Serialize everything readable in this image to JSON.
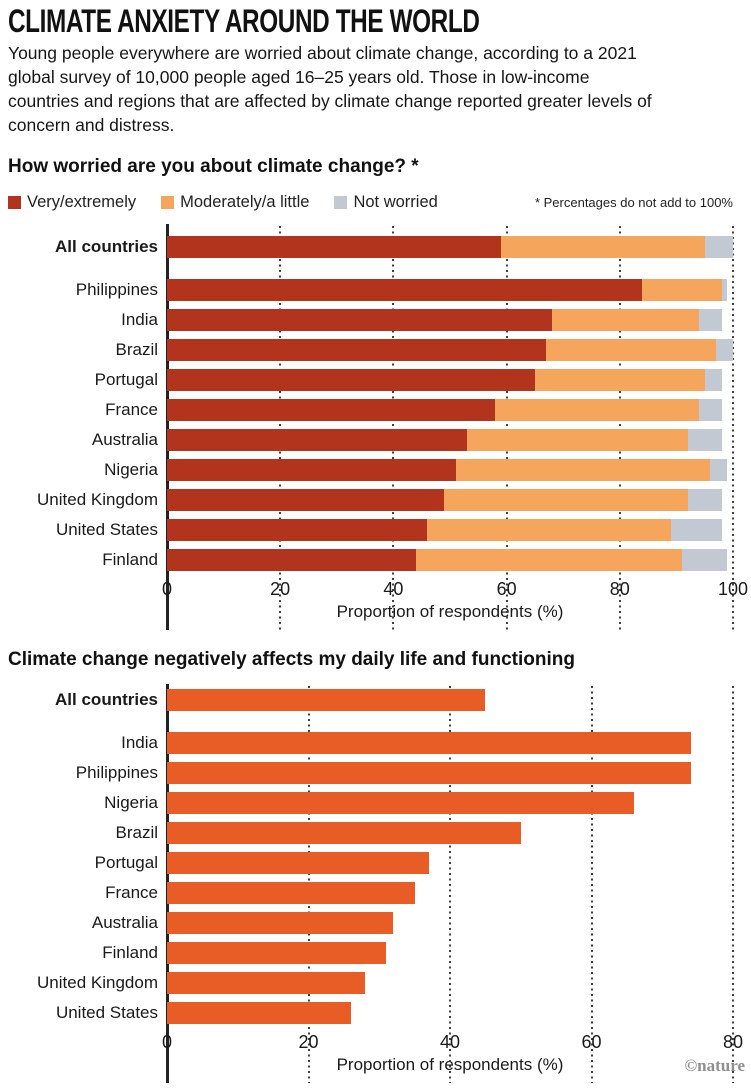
{
  "header": {
    "title": "CLIMATE ANXIETY AROUND THE WORLD",
    "intro": "Young people everywhere are worried about climate change, according to a 2021 global survey of 10,000 people aged 16–25 years old. Those in low-income countries and regions that are affected by climate change reported greater levels of concern and distress."
  },
  "credit": "©nature",
  "chart_data": [
    {
      "type": "bar",
      "stacked": true,
      "title": "How worried are you about climate change? *",
      "note": "* Percentages do not add to 100%",
      "xlabel": "Proportion of respondents (%)",
      "xlim": [
        0,
        100
      ],
      "xticks": [
        0,
        20,
        40,
        60,
        80,
        100
      ],
      "grid": "dotted-vertical",
      "legend_position": "top",
      "keys": [
        "very-extremely",
        "moderately-a-little",
        "not-worried"
      ],
      "legend": [
        {
          "label": "Very/extremely",
          "color": "#b2341c"
        },
        {
          "label": "Moderately/a little",
          "color": "#f5a55c"
        },
        {
          "label": "Not worried",
          "color": "#c2c9d2"
        }
      ],
      "colors": [
        "#b2341c",
        "#f5a55c",
        "#c2c9d2"
      ],
      "rows": [
        {
          "label": "All countries",
          "bold": true,
          "values": [
            59,
            36,
            5
          ]
        },
        {
          "label": "Philippines",
          "bold": false,
          "values": [
            84,
            14,
            1
          ]
        },
        {
          "label": "India",
          "bold": false,
          "values": [
            68,
            26,
            4
          ]
        },
        {
          "label": "Brazil",
          "bold": false,
          "values": [
            67,
            30,
            3
          ]
        },
        {
          "label": "Portugal",
          "bold": false,
          "values": [
            65,
            30,
            3
          ]
        },
        {
          "label": "France",
          "bold": false,
          "values": [
            58,
            36,
            4
          ]
        },
        {
          "label": "Australia",
          "bold": false,
          "values": [
            53,
            39,
            6
          ]
        },
        {
          "label": "Nigeria",
          "bold": false,
          "values": [
            51,
            45,
            3
          ]
        },
        {
          "label": "United Kingdom",
          "bold": false,
          "values": [
            49,
            43,
            6
          ]
        },
        {
          "label": "United States",
          "bold": false,
          "values": [
            46,
            43,
            9
          ]
        },
        {
          "label": "Finland",
          "bold": false,
          "values": [
            44,
            47,
            8
          ]
        }
      ]
    },
    {
      "type": "bar",
      "stacked": false,
      "title": "Climate change negatively affects my daily life and functioning",
      "xlabel": "Proportion of respondents (%)",
      "xlim": [
        0,
        80
      ],
      "xticks": [
        0,
        20,
        40,
        60,
        80
      ],
      "grid": "dotted-vertical",
      "color": "#e85d26",
      "rows": [
        {
          "label": "All countries",
          "bold": true,
          "value": 45
        },
        {
          "label": "India",
          "bold": false,
          "value": 74
        },
        {
          "label": "Philippines",
          "bold": false,
          "value": 74
        },
        {
          "label": "Nigeria",
          "bold": false,
          "value": 66
        },
        {
          "label": "Brazil",
          "bold": false,
          "value": 50
        },
        {
          "label": "Portugal",
          "bold": false,
          "value": 37
        },
        {
          "label": "France",
          "bold": false,
          "value": 35
        },
        {
          "label": "Australia",
          "bold": false,
          "value": 32
        },
        {
          "label": "Finland",
          "bold": false,
          "value": 31
        },
        {
          "label": "United Kingdom",
          "bold": false,
          "value": 28
        },
        {
          "label": "United States",
          "bold": false,
          "value": 26
        }
      ]
    }
  ]
}
